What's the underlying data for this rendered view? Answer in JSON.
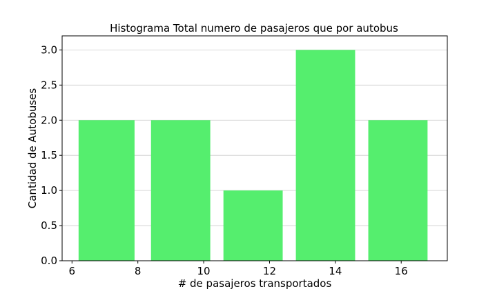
{
  "chart_data": {
    "type": "bar",
    "title": "Histograma Total numero de pasajeros que por autobus",
    "xlabel": "# de pasajeros transportados",
    "ylabel": "Cantidad de Autobuses",
    "bins": [
      {
        "x0": 6.2,
        "x1": 7.9,
        "count": 2
      },
      {
        "x0": 8.4,
        "x1": 10.2,
        "count": 2
      },
      {
        "x0": 10.6,
        "x1": 12.4,
        "count": 1
      },
      {
        "x0": 12.8,
        "x1": 14.6,
        "count": 3
      },
      {
        "x0": 15.0,
        "x1": 16.8,
        "count": 2
      }
    ],
    "xlim": [
      5.7,
      17.4
    ],
    "ylim": [
      0,
      3.2
    ],
    "xticks": [
      6,
      8,
      10,
      12,
      14,
      16
    ],
    "xtick_labels": [
      "6",
      "8",
      "10",
      "12",
      "14",
      "16"
    ],
    "yticks": [
      0.0,
      0.5,
      1.0,
      1.5,
      2.0,
      2.5,
      3.0
    ],
    "ytick_labels": [
      "0.0",
      "0.5",
      "1.0",
      "1.5",
      "2.0",
      "2.5",
      "3.0"
    ],
    "grid": "horizontal",
    "bar_color": "#55ee6e"
  }
}
